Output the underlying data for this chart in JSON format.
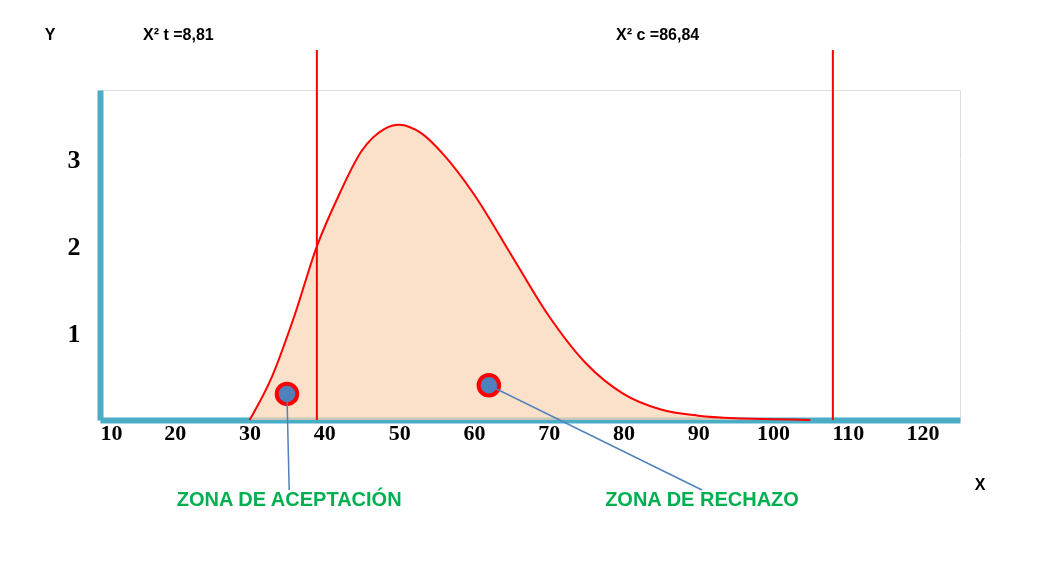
{
  "chart_data": {
    "type": "area",
    "xlabel": "X",
    "ylabel": "Y",
    "x": [
      30,
      33,
      36,
      39,
      42,
      45,
      48,
      50,
      53,
      56,
      60,
      65,
      70,
      75,
      80,
      85,
      90,
      95,
      100,
      105
    ],
    "series": [
      {
        "color": "#f9d3b3",
        "values": [
          0,
          0.5,
          1.2,
          2.0,
          2.6,
          3.1,
          3.35,
          3.4,
          3.3,
          3.05,
          2.6,
          1.9,
          1.2,
          0.65,
          0.3,
          0.12,
          0.05,
          0.02,
          0.01,
          0
        ]
      },
      {
        "type": "scatter",
        "color": "#4f81bd",
        "x": [
          35,
          62
        ],
        "values": [
          0.3,
          0.4
        ]
      }
    ],
    "xlim": [
      10,
      125
    ],
    "xticks": [
      10,
      20,
      30,
      40,
      50,
      60,
      70,
      80,
      90,
      100,
      110,
      120
    ],
    "ylim": [
      0,
      3.8
    ],
    "yticks": [
      1,
      2,
      3
    ],
    "grid": true,
    "ref_lines": [
      {
        "axis": "x",
        "value": 39,
        "color": "#ff0000"
      },
      {
        "axis": "x",
        "value": 108,
        "color": "#ff0000"
      }
    ],
    "annotations": [
      "X² t =8,81",
      "X² c =86,84",
      {
        "text": "ZONA DE ACEPTACIÓN",
        "x": 35,
        "y": 0.3
      },
      {
        "text": "ZONA DE RECHAZO",
        "x": 62,
        "y": 0.4
      }
    ]
  }
}
